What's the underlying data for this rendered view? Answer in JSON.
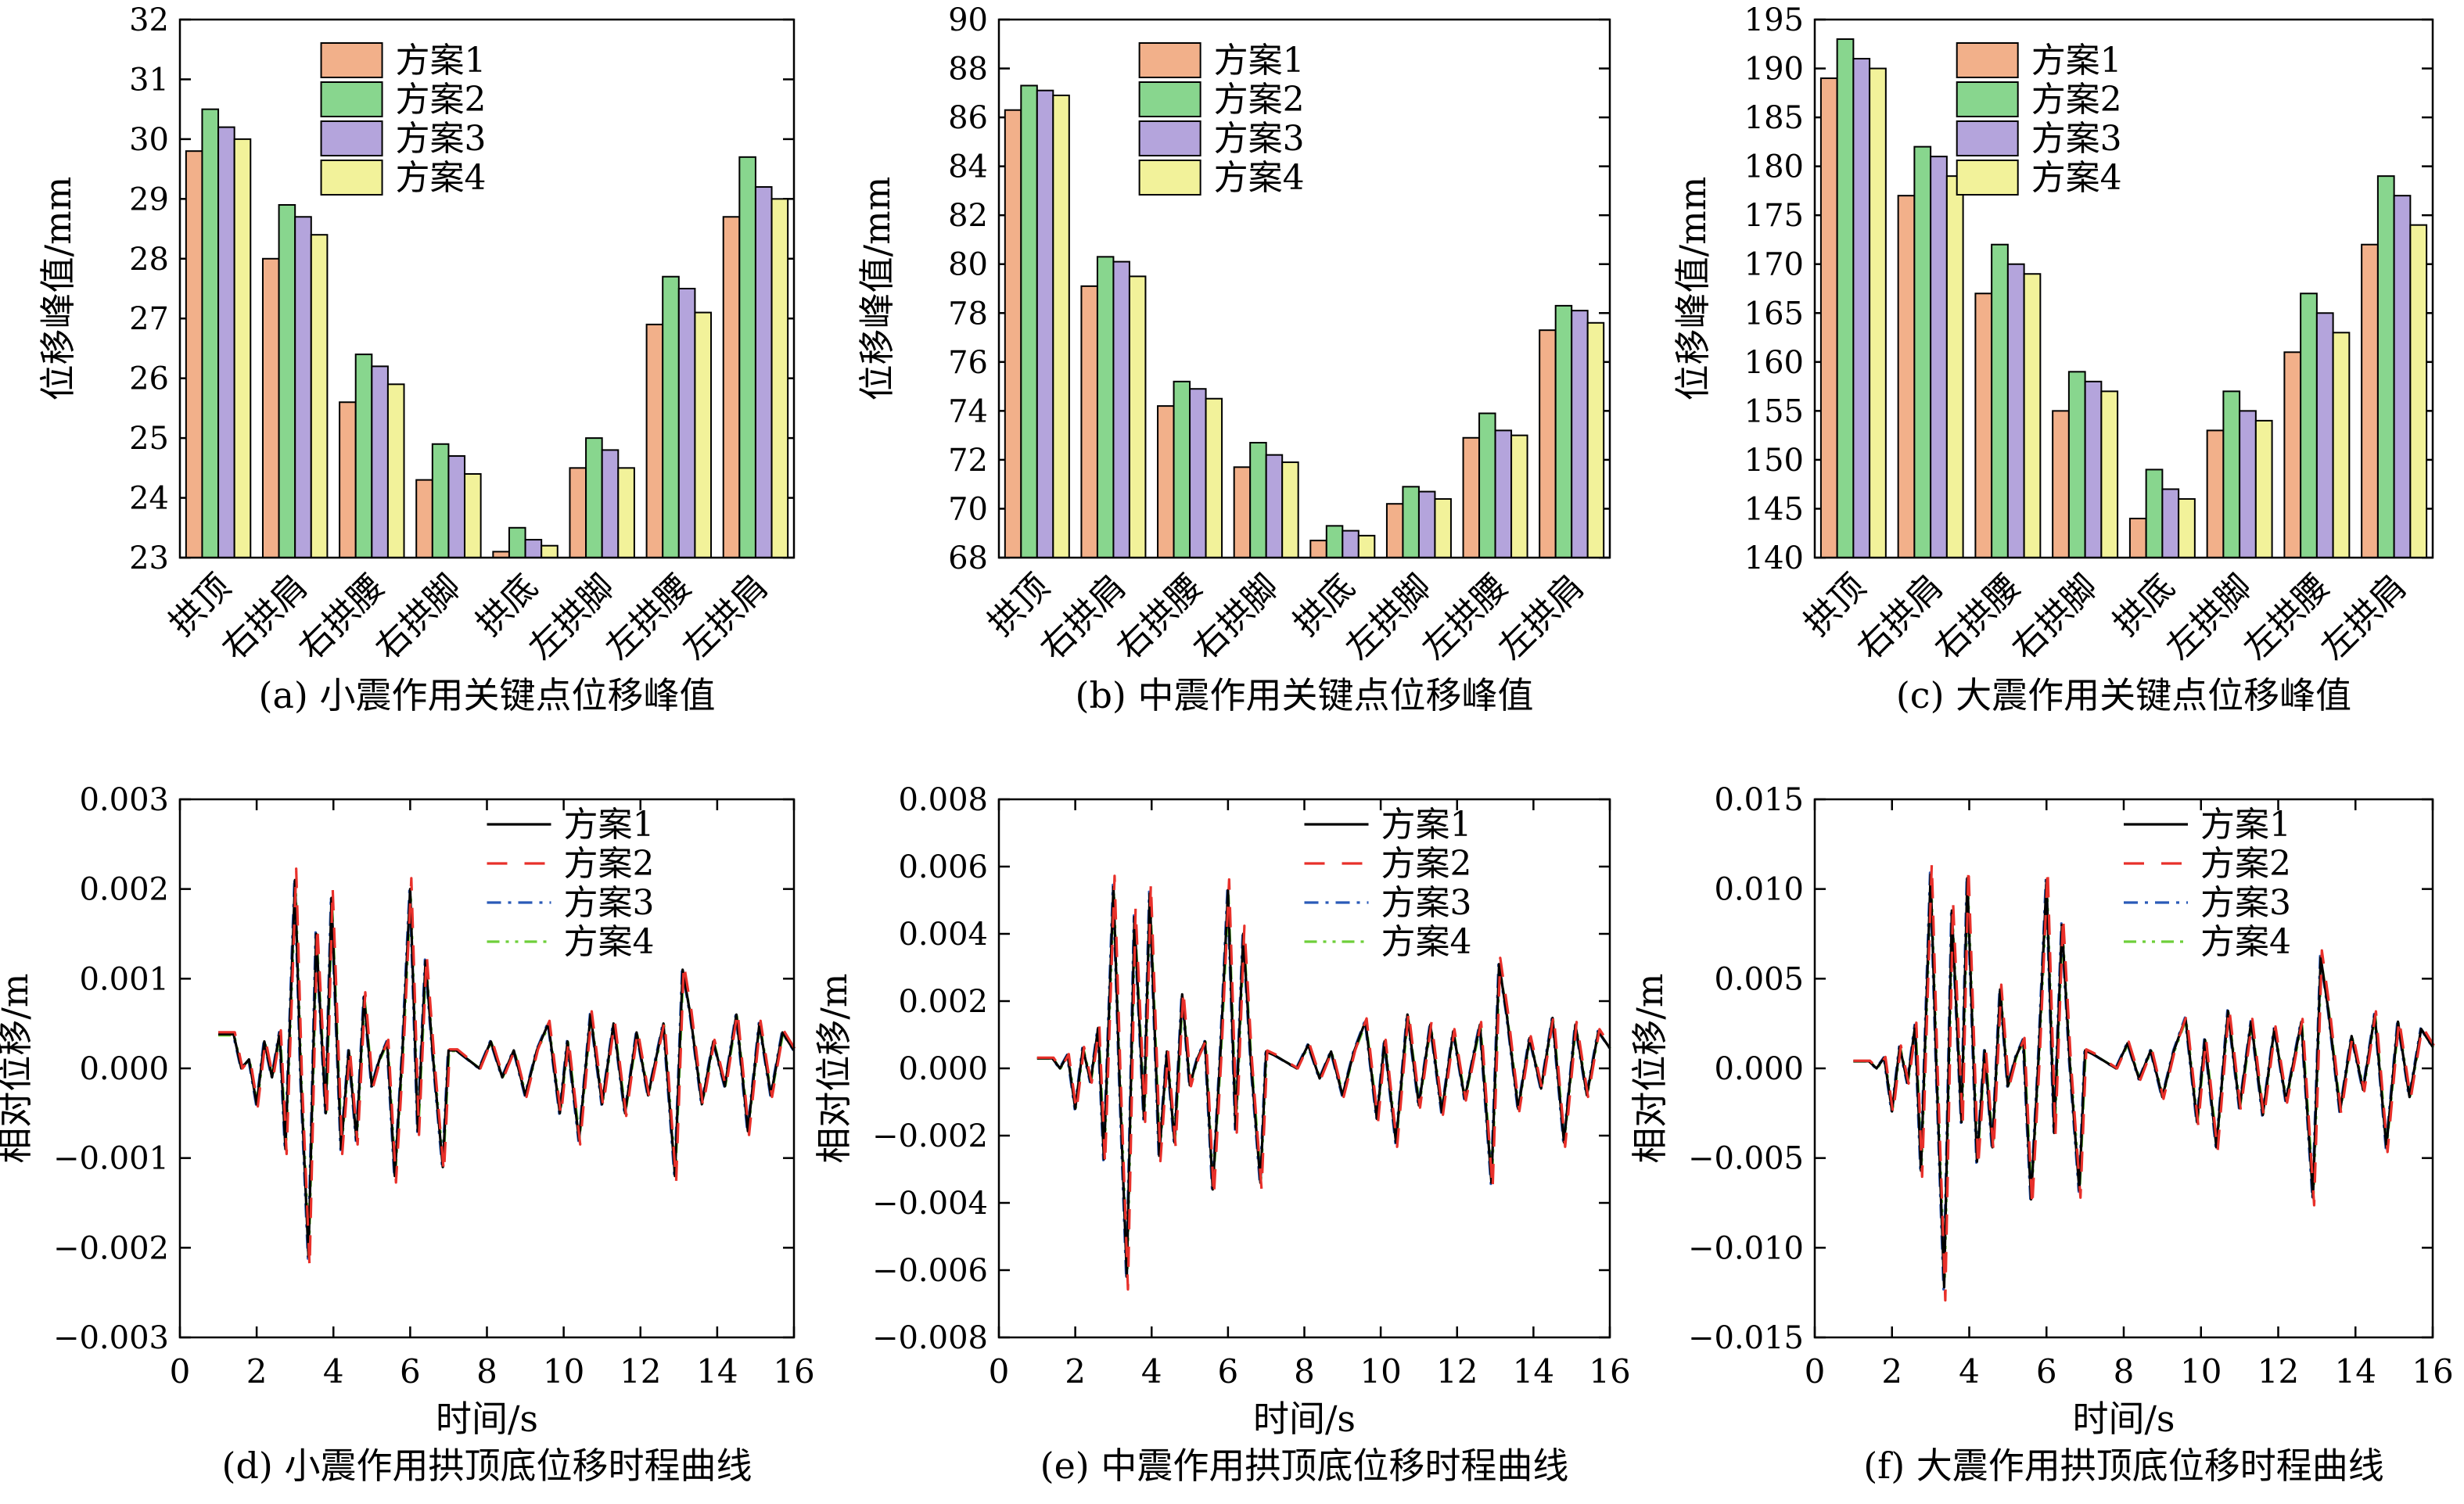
{
  "colors": {
    "series": [
      "#f2b08a",
      "#88d68e",
      "#b4a4dc",
      "#f2f29a"
    ],
    "lines": [
      "#000000",
      "#e8302a",
      "#2a5ab8",
      "#6ecf3a"
    ]
  },
  "chart_data": [
    {
      "type": "bar",
      "caption": "(a) 小震作用关键点位移峰值",
      "ylabel": "位移峰值/mm",
      "ylim": [
        23,
        32
      ],
      "yticks": [
        23,
        24,
        25,
        26,
        27,
        28,
        29,
        30,
        31,
        32
      ],
      "categories": [
        "拱顶",
        "右拱肩",
        "右拱腰",
        "右拱脚",
        "拱底",
        "左拱脚",
        "左拱腰",
        "左拱肩"
      ],
      "legend_position": "top-center",
      "series": [
        {
          "name": "方案1",
          "values": [
            29.8,
            28.0,
            25.6,
            24.3,
            23.1,
            24.5,
            26.9,
            28.7
          ]
        },
        {
          "name": "方案2",
          "values": [
            30.5,
            28.9,
            26.4,
            24.9,
            23.5,
            25.0,
            27.7,
            29.7
          ]
        },
        {
          "name": "方案3",
          "values": [
            30.2,
            28.7,
            26.2,
            24.7,
            23.3,
            24.8,
            27.5,
            29.2
          ]
        },
        {
          "name": "方案4",
          "values": [
            30.0,
            28.4,
            25.9,
            24.4,
            23.2,
            24.5,
            27.1,
            29.0
          ]
        }
      ]
    },
    {
      "type": "bar",
      "caption": "(b) 中震作用关键点位移峰值",
      "ylabel": "位移峰值/mm",
      "ylim": [
        68,
        90
      ],
      "yticks": [
        68,
        70,
        72,
        74,
        76,
        78,
        80,
        82,
        84,
        86,
        88,
        90
      ],
      "categories": [
        "拱顶",
        "右拱肩",
        "右拱腰",
        "右拱脚",
        "拱底",
        "左拱脚",
        "左拱腰",
        "左拱肩"
      ],
      "legend_position": "top-center",
      "series": [
        {
          "name": "方案1",
          "values": [
            86.3,
            79.1,
            74.2,
            71.7,
            68.7,
            70.2,
            72.9,
            77.3
          ]
        },
        {
          "name": "方案2",
          "values": [
            87.3,
            80.3,
            75.2,
            72.7,
            69.3,
            70.9,
            73.9,
            78.3
          ]
        },
        {
          "name": "方案3",
          "values": [
            87.1,
            80.1,
            74.9,
            72.2,
            69.1,
            70.7,
            73.2,
            78.1
          ]
        },
        {
          "name": "方案4",
          "values": [
            86.9,
            79.5,
            74.5,
            71.9,
            68.9,
            70.4,
            73.0,
            77.6
          ]
        }
      ]
    },
    {
      "type": "bar",
      "caption": "(c) 大震作用关键点位移峰值",
      "ylabel": "位移峰值/mm",
      "ylim": [
        140,
        195
      ],
      "yticks": [
        140,
        145,
        150,
        155,
        160,
        165,
        170,
        175,
        180,
        185,
        190,
        195
      ],
      "categories": [
        "拱顶",
        "右拱肩",
        "右拱腰",
        "右拱脚",
        "拱底",
        "左拱脚",
        "左拱腰",
        "左拱肩"
      ],
      "legend_position": "top-center",
      "series": [
        {
          "name": "方案1",
          "values": [
            189,
            177,
            167,
            155,
            144,
            153,
            161,
            172
          ]
        },
        {
          "name": "方案2",
          "values": [
            193,
            182,
            172,
            159,
            149,
            157,
            167,
            179
          ]
        },
        {
          "name": "方案3",
          "values": [
            191,
            181,
            170,
            158,
            147,
            155,
            165,
            177
          ]
        },
        {
          "name": "方案4",
          "values": [
            190,
            179,
            169,
            157,
            146,
            154,
            163,
            174
          ]
        }
      ]
    },
    {
      "type": "line",
      "caption": "(d) 小震作用拱顶底位移时程曲线",
      "xlabel": "时间/s",
      "ylabel": "相对位移/m",
      "xlim": [
        0,
        16
      ],
      "ylim": [
        -0.003,
        0.003
      ],
      "xticks": [
        0,
        2,
        4,
        6,
        8,
        10,
        12,
        14,
        16
      ],
      "yticks": [
        -0.003,
        -0.002,
        -0.001,
        0.0,
        0.001,
        0.002,
        0.003
      ],
      "ytick_labels": [
        "−0.003",
        "−0.002",
        "−0.001",
        "0.000",
        "0.001",
        "0.002",
        "0.003"
      ],
      "legend_position": "top-right",
      "series": [
        {
          "name": "方案1",
          "style": "solid"
        },
        {
          "name": "方案2",
          "style": "dash"
        },
        {
          "name": "方案3",
          "style": "dashdot"
        },
        {
          "name": "方案4",
          "style": "dashdotdot"
        }
      ],
      "x": [
        1.0,
        1.4,
        1.6,
        1.8,
        2.0,
        2.2,
        2.4,
        2.6,
        2.75,
        3.0,
        3.15,
        3.35,
        3.55,
        3.8,
        3.95,
        4.2,
        4.4,
        4.6,
        4.8,
        5.0,
        5.2,
        5.4,
        5.6,
        5.8,
        6.0,
        6.2,
        6.4,
        6.6,
        6.85,
        7.0,
        7.2,
        7.5,
        7.8,
        8.1,
        8.4,
        8.7,
        9.0,
        9.3,
        9.6,
        9.9,
        10.1,
        10.4,
        10.7,
        11.0,
        11.3,
        11.6,
        11.9,
        12.2,
        12.6,
        12.9,
        13.1,
        13.3,
        13.6,
        13.9,
        14.2,
        14.5,
        14.8,
        15.1,
        15.4,
        15.7,
        16.0
      ],
      "y": [
        0.00038,
        0.00038,
        0.0,
        0.0001,
        -0.0004,
        0.0003,
        -0.0001,
        0.0004,
        -0.0009,
        0.0021,
        -0.0001,
        -0.0021,
        0.0015,
        -0.0005,
        0.0019,
        -0.0009,
        0.0002,
        -0.0008,
        0.0008,
        -0.0002,
        0.0001,
        0.0003,
        -0.0012,
        0.0002,
        0.002,
        -0.0007,
        0.0012,
        0.0001,
        -0.0011,
        0.0002,
        0.0002,
        0.0001,
        0.0,
        0.0003,
        -0.0001,
        0.0002,
        -0.0003,
        0.0002,
        0.0005,
        -0.0005,
        0.0003,
        -0.0008,
        0.0006,
        -0.0004,
        0.0005,
        -0.0005,
        0.0004,
        -0.0003,
        0.0005,
        -0.0012,
        0.0011,
        0.0006,
        -0.0004,
        0.0003,
        -0.0002,
        0.0006,
        -0.0007,
        0.0005,
        -0.0003,
        0.0004,
        0.0002
      ]
    },
    {
      "type": "line",
      "caption": "(e) 中震作用拱顶底位移时程曲线",
      "xlabel": "时间/s",
      "ylabel": "相对位移/m",
      "xlim": [
        0,
        16
      ],
      "ylim": [
        -0.008,
        0.008
      ],
      "xticks": [
        0,
        2,
        4,
        6,
        8,
        10,
        12,
        14,
        16
      ],
      "yticks": [
        -0.008,
        -0.006,
        -0.004,
        -0.002,
        0.0,
        0.002,
        0.004,
        0.006,
        0.008
      ],
      "ytick_labels": [
        "−0.008",
        "−0.006",
        "−0.004",
        "−0.002",
        "0.000",
        "0.002",
        "0.004",
        "0.006",
        "0.008"
      ],
      "legend_position": "top-right",
      "series": [
        {
          "name": "方案1",
          "style": "solid"
        },
        {
          "name": "方案2",
          "style": "dash"
        },
        {
          "name": "方案3",
          "style": "dashdot"
        },
        {
          "name": "方案4",
          "style": "dashdotdot"
        }
      ],
      "x": [
        1.0,
        1.4,
        1.6,
        1.8,
        2.0,
        2.2,
        2.4,
        2.6,
        2.75,
        3.0,
        3.15,
        3.35,
        3.55,
        3.8,
        3.95,
        4.2,
        4.4,
        4.6,
        4.8,
        5.0,
        5.2,
        5.4,
        5.6,
        5.8,
        6.0,
        6.2,
        6.4,
        6.6,
        6.85,
        7.0,
        7.2,
        7.5,
        7.8,
        8.1,
        8.4,
        8.7,
        9.0,
        9.3,
        9.6,
        9.9,
        10.1,
        10.4,
        10.7,
        11.0,
        11.3,
        11.6,
        11.9,
        12.2,
        12.6,
        12.9,
        13.1,
        13.3,
        13.6,
        13.9,
        14.2,
        14.5,
        14.8,
        15.1,
        15.4,
        15.7,
        16.0
      ],
      "y": [
        0.0003,
        0.0003,
        0.0,
        0.0004,
        -0.0012,
        0.0006,
        -0.0004,
        0.0012,
        -0.0027,
        0.0054,
        0.0,
        -0.0062,
        0.0045,
        -0.0015,
        0.0052,
        -0.0026,
        0.0005,
        -0.0022,
        0.0022,
        -0.0005,
        0.0003,
        0.0008,
        -0.0036,
        0.0004,
        0.0053,
        -0.0018,
        0.004,
        0.0002,
        -0.0034,
        0.0005,
        0.0004,
        0.0002,
        0.0,
        0.0007,
        -0.0003,
        0.0005,
        -0.0008,
        0.0005,
        0.0014,
        -0.0015,
        0.0008,
        -0.0022,
        0.0016,
        -0.0011,
        0.0013,
        -0.0013,
        0.0011,
        -0.0009,
        0.0013,
        -0.0034,
        0.0031,
        0.0016,
        -0.0012,
        0.0009,
        -0.0006,
        0.0015,
        -0.0022,
        0.0013,
        -0.0008,
        0.0011,
        0.0006
      ]
    },
    {
      "type": "line",
      "caption": "(f) 大震作用拱顶底位移时程曲线",
      "xlabel": "时间/s",
      "ylabel": "相对位移/m",
      "xlim": [
        0,
        16
      ],
      "ylim": [
        -0.015,
        0.015
      ],
      "xticks": [
        0,
        2,
        4,
        6,
        8,
        10,
        12,
        14,
        16
      ],
      "yticks": [
        -0.015,
        -0.01,
        -0.005,
        0.0,
        0.005,
        0.01,
        0.015
      ],
      "ytick_labels": [
        "−0.015",
        "−0.010",
        "−0.005",
        "0.000",
        "0.005",
        "0.010",
        "0.015"
      ],
      "legend_position": "top-right",
      "series": [
        {
          "name": "方案1",
          "style": "solid"
        },
        {
          "name": "方案2",
          "style": "dash"
        },
        {
          "name": "方案3",
          "style": "dashdot"
        },
        {
          "name": "方案4",
          "style": "dashdotdot"
        }
      ],
      "x": [
        1.0,
        1.4,
        1.6,
        1.8,
        2.0,
        2.2,
        2.4,
        2.6,
        2.75,
        3.0,
        3.15,
        3.35,
        3.55,
        3.8,
        3.95,
        4.2,
        4.4,
        4.6,
        4.8,
        5.0,
        5.2,
        5.4,
        5.6,
        5.8,
        6.0,
        6.2,
        6.4,
        6.6,
        6.85,
        7.0,
        7.2,
        7.5,
        7.8,
        8.1,
        8.4,
        8.7,
        9.0,
        9.3,
        9.6,
        9.9,
        10.1,
        10.4,
        10.7,
        11.0,
        11.3,
        11.6,
        11.9,
        12.2,
        12.6,
        12.9,
        13.1,
        13.3,
        13.6,
        13.9,
        14.2,
        14.5,
        14.8,
        15.1,
        15.4,
        15.7,
        16.0
      ],
      "y": [
        0.0004,
        0.0004,
        0.0,
        0.0006,
        -0.0024,
        0.0012,
        -0.0008,
        0.0024,
        -0.0057,
        0.0108,
        0.0,
        -0.0122,
        0.0088,
        -0.003,
        0.0106,
        -0.0052,
        0.001,
        -0.0044,
        0.0044,
        -0.001,
        0.0006,
        0.0016,
        -0.0073,
        0.0008,
        0.0105,
        -0.0036,
        0.008,
        0.0004,
        -0.0068,
        0.001,
        0.0008,
        0.0004,
        0.0,
        0.0014,
        -0.0006,
        0.001,
        -0.0016,
        0.001,
        0.0028,
        -0.003,
        0.0016,
        -0.0044,
        0.0032,
        -0.0022,
        0.0026,
        -0.0026,
        0.0022,
        -0.0018,
        0.0026,
        -0.0072,
        0.0062,
        0.0032,
        -0.0024,
        0.0018,
        -0.0012,
        0.003,
        -0.0044,
        0.0026,
        -0.0016,
        0.0022,
        0.0012
      ]
    }
  ]
}
